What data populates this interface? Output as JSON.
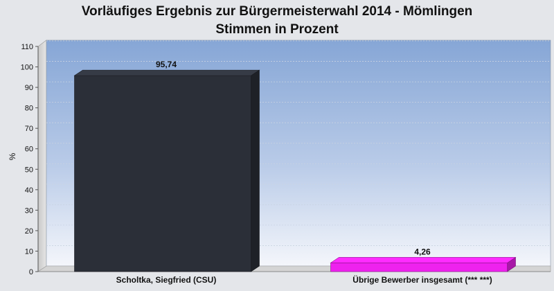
{
  "chart_data": {
    "type": "bar",
    "title": "Vorläufiges Ergebnis zur Bürgermeisterwahl 2014 - Mömlingen",
    "subtitle": "Stimmen in Prozent",
    "ylabel": "%",
    "xlabel": "",
    "ylim": [
      0,
      110
    ],
    "yticks": [
      0,
      10,
      20,
      30,
      40,
      50,
      60,
      70,
      80,
      90,
      100,
      110
    ],
    "categories": [
      "Scholtka, Siegfried (CSU)",
      "Übrige Bewerber insgesamt (***  ***)"
    ],
    "values": [
      95.74,
      4.26
    ],
    "value_labels": [
      "95,74",
      "4,26"
    ],
    "colors": [
      "#2b2f38",
      "#ee22ee"
    ],
    "grid": true,
    "legend": "none"
  }
}
